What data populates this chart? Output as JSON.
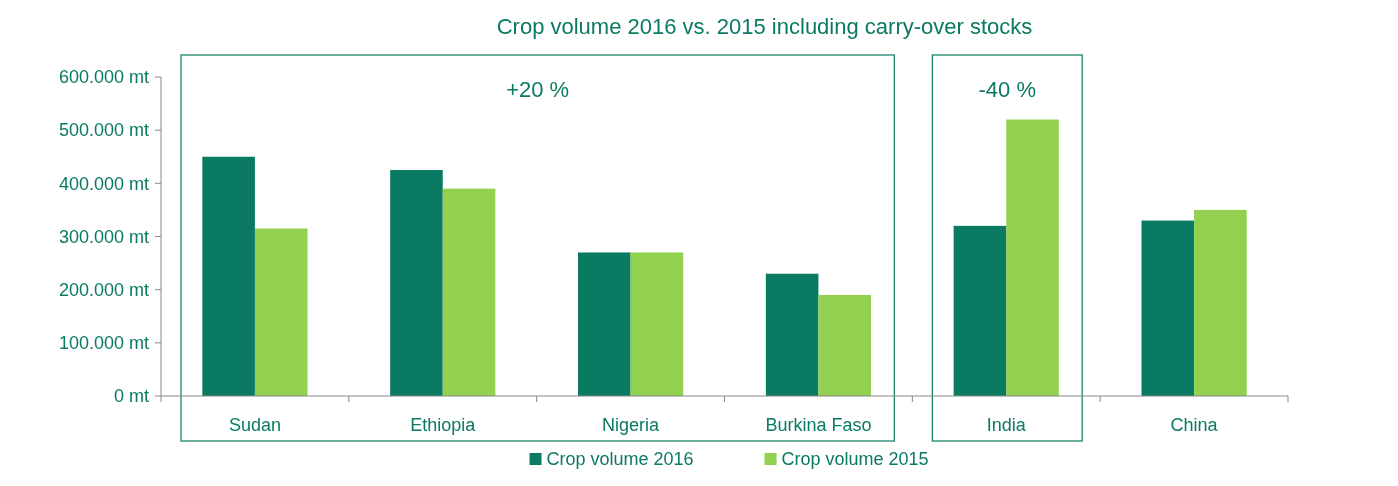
{
  "chart_data": {
    "type": "bar",
    "title": "Crop volume 2016 vs. 2015 including carry-over stocks",
    "categories": [
      "Sudan",
      "Ethiopia",
      "Nigeria",
      "Burkina Faso",
      "India",
      "China"
    ],
    "series": [
      {
        "name": "Crop volume 2016",
        "color": "#0a7a62",
        "values": [
          450000,
          425000,
          270000,
          230000,
          320000,
          330000
        ]
      },
      {
        "name": "Crop volume 2015",
        "color": "#92d050",
        "values": [
          315000,
          390000,
          270000,
          190000,
          520000,
          350000
        ]
      }
    ],
    "ylim": [
      0,
      600000
    ],
    "yticks": [
      {
        "value": 0,
        "label": "0 mt"
      },
      {
        "value": 100000,
        "label": "100.000 mt"
      },
      {
        "value": 200000,
        "label": "200.000 mt"
      },
      {
        "value": 300000,
        "label": "300.000 mt"
      },
      {
        "value": 400000,
        "label": "400.000 mt"
      },
      {
        "value": 500000,
        "label": "500.000 mt"
      },
      {
        "value": 600000,
        "label": "600.000 mt"
      }
    ],
    "bands": [
      {
        "axis": "x",
        "from": "Sudan",
        "to": "Burkina Faso",
        "label": "+20 %",
        "color": "#0a7a62"
      },
      {
        "axis": "x",
        "from": "India",
        "to": "India",
        "label": "-40 %",
        "color": "#0a7a62"
      }
    ],
    "legend": "bottom"
  }
}
